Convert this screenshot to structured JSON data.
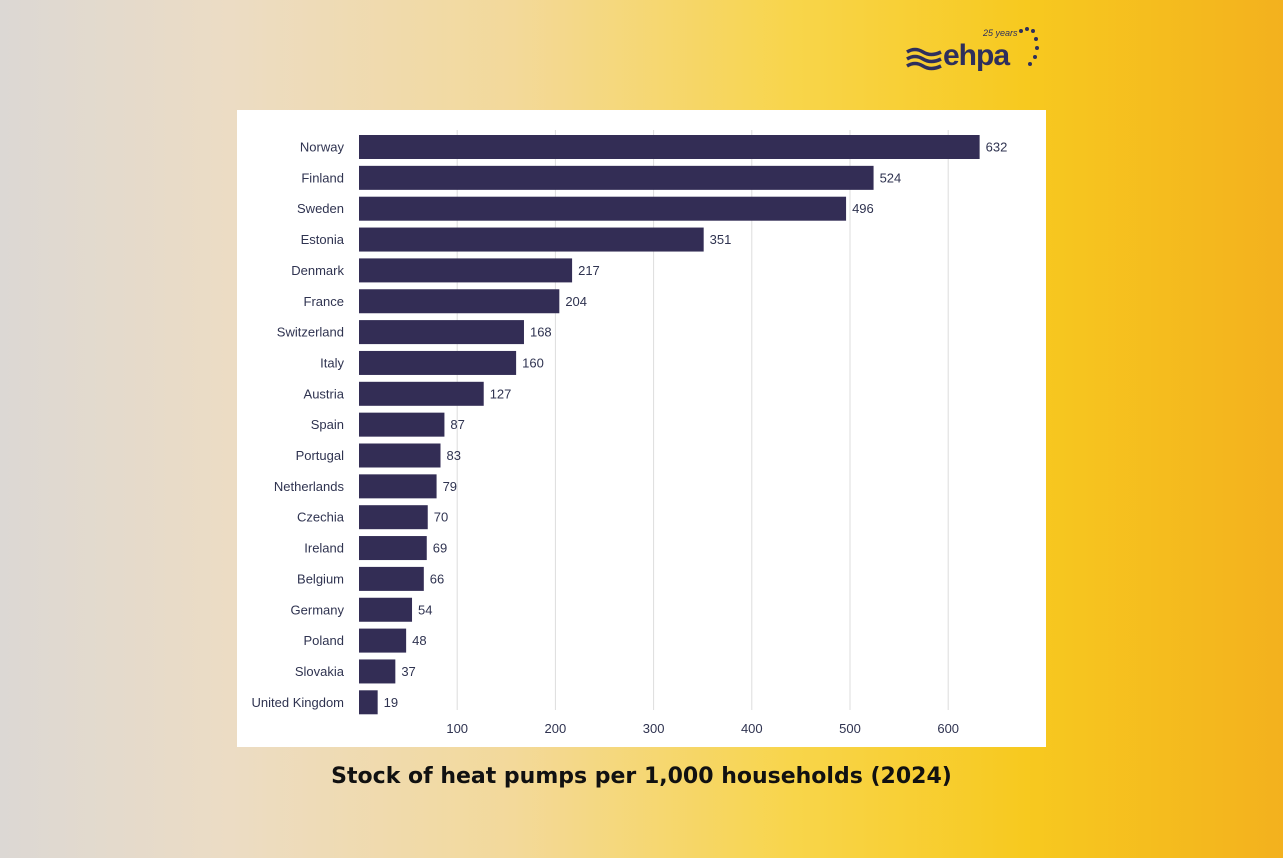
{
  "caption": "Stock of heat pumps per 1,000 households (2024)",
  "logo": {
    "text": "ehpa",
    "sub": "25 years"
  },
  "colors": {
    "bar": "#332d55",
    "grid": "#dddddd",
    "text": "#2f3350"
  },
  "chart_data": {
    "type": "bar",
    "orientation": "horizontal",
    "title": "Stock of heat pumps per 1,000 households (2024)",
    "categories": [
      "Norway",
      "Finland",
      "Sweden",
      "Estonia",
      "Denmark",
      "France",
      "Switzerland",
      "Italy",
      "Austria",
      "Spain",
      "Portugal",
      "Netherlands",
      "Czechia",
      "Ireland",
      "Belgium",
      "Germany",
      "Poland",
      "Slovakia",
      "United Kingdom"
    ],
    "values": [
      632,
      524,
      496,
      351,
      217,
      204,
      168,
      160,
      127,
      87,
      83,
      79,
      70,
      69,
      66,
      54,
      48,
      37,
      19
    ],
    "xticks": [
      100,
      200,
      300,
      400,
      500,
      600
    ],
    "xlim": [
      0,
      680
    ],
    "grid": true,
    "data_labels": true
  }
}
